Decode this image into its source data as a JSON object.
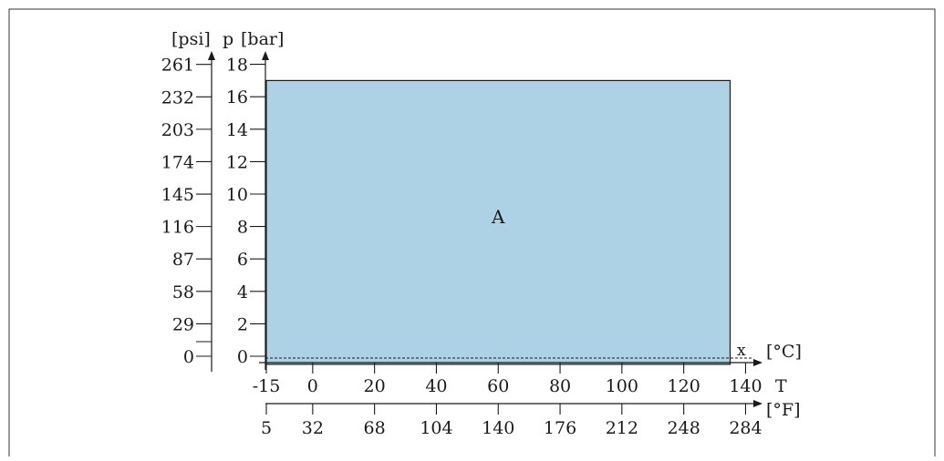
{
  "chart_data": {
    "type": "area",
    "title": "",
    "region": {
      "label": "A",
      "t_min_c": -15,
      "t_max_c": 135,
      "p_min_bar": -0.5,
      "p_max_bar": 17,
      "fill": "#aed2e5",
      "stroke": "#1a1a1a"
    },
    "reference_line": {
      "label": "x",
      "p_bar": 0,
      "style": "dashed"
    },
    "x_axis_celsius": {
      "name": "T",
      "unit": "[°C]",
      "range": [
        -15,
        145
      ],
      "ticks": [
        -15,
        0,
        20,
        40,
        60,
        80,
        100,
        120,
        140
      ],
      "tick_labels": [
        "-15",
        "0",
        "20",
        "40",
        "60",
        "80",
        "100",
        "120",
        "140"
      ]
    },
    "x_axis_fahrenheit": {
      "unit": "[°F]",
      "ticks": [
        5,
        32,
        68,
        104,
        140,
        176,
        212,
        248,
        284
      ],
      "tick_labels": [
        "5",
        "32",
        "68",
        "104",
        "140",
        "176",
        "212",
        "248",
        "284"
      ]
    },
    "y_axis_bar": {
      "name": "p",
      "unit": "[bar]",
      "range": [
        -1,
        19
      ],
      "ticks": [
        0,
        2,
        4,
        6,
        8,
        10,
        12,
        14,
        16,
        18
      ],
      "tick_labels": [
        "0",
        "2",
        "4",
        "6",
        "8",
        "10",
        "12",
        "14",
        "16",
        "18"
      ]
    },
    "y_axis_psi": {
      "unit": "[psi]",
      "ticks": [
        0,
        29,
        58,
        87,
        116,
        145,
        174,
        203,
        232,
        261
      ],
      "tick_labels": [
        "0",
        "29",
        "58",
        "87",
        "116",
        "145",
        "174",
        "203",
        "232",
        "261"
      ]
    },
    "grid": false,
    "legend": "none"
  }
}
